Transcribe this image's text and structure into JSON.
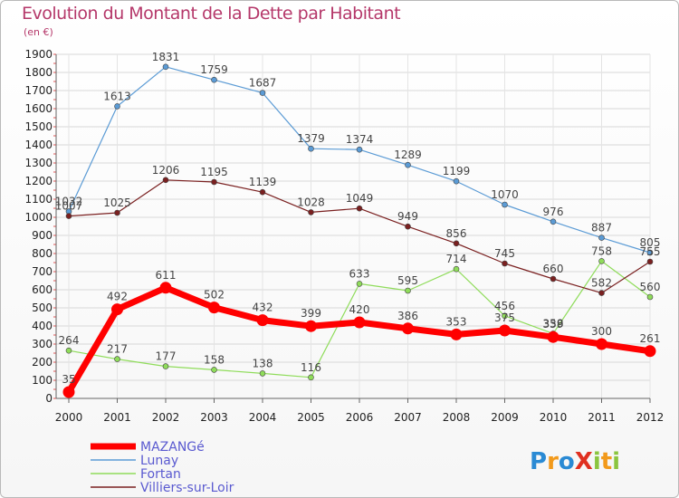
{
  "chart_data": {
    "type": "line",
    "title": "Evolution du Montant de la Dette par Habitant",
    "subtitle": "(en €)",
    "categories": [
      "2000",
      "2001",
      "2002",
      "2003",
      "2004",
      "2005",
      "2006",
      "2007",
      "2008",
      "2009",
      "2010",
      "2011",
      "2012"
    ],
    "y_ticks": [
      0,
      100,
      200,
      300,
      400,
      500,
      600,
      700,
      800,
      900,
      1000,
      1100,
      1200,
      1300,
      1400,
      1500,
      1600,
      1700,
      1800,
      1900
    ],
    "ylim": [
      0,
      1900
    ],
    "grid": true,
    "legend_position": "bottom-left",
    "series": [
      {
        "name": "MAZANGé",
        "color": "#ff0000",
        "values": [
          35,
          492,
          611,
          502,
          432,
          399,
          420,
          386,
          353,
          375,
          339,
          300,
          261
        ]
      },
      {
        "name": "Lunay",
        "color": "#5b9bd5",
        "values": [
          1032,
          1613,
          1831,
          1759,
          1687,
          1379,
          1374,
          1289,
          1199,
          1070,
          976,
          887,
          805
        ]
      },
      {
        "name": "Fortan",
        "color": "#8fdc5a",
        "values": [
          264,
          217,
          177,
          158,
          138,
          116,
          633,
          595,
          714,
          456,
          358,
          758,
          560
        ]
      },
      {
        "name": "Villiers-sur-Loir",
        "color": "#7a2020",
        "values": [
          1007,
          1025,
          1206,
          1195,
          1139,
          1028,
          1049,
          949,
          856,
          745,
          660,
          582,
          755
        ]
      }
    ]
  },
  "logo": {
    "text": "ProXiti",
    "letters": [
      "P",
      "r",
      "o",
      "X",
      "i",
      "t",
      "i"
    ],
    "colors": [
      "#2a8ad4",
      "#f29a1c",
      "#2a8ad4",
      "#e03020",
      "#8bc53f",
      "#f29a1c",
      "#8bc53f"
    ]
  }
}
